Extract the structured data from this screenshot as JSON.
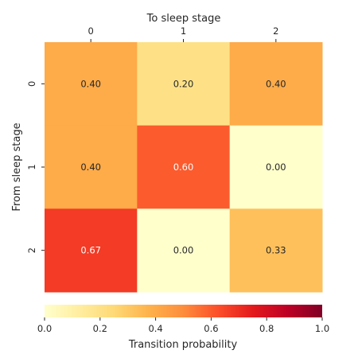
{
  "chart_data": {
    "type": "heatmap",
    "x_title": "To sleep stage",
    "y_title": "From sleep stage",
    "x_ticks": [
      "0",
      "1",
      "2"
    ],
    "y_ticks": [
      "0",
      "1",
      "2"
    ],
    "values": [
      [
        0.4,
        0.2,
        0.4
      ],
      [
        0.4,
        0.6,
        0.0
      ],
      [
        0.67,
        0.0,
        0.33
      ]
    ],
    "labels": [
      [
        "0.40",
        "0.20",
        "0.40"
      ],
      [
        "0.40",
        "0.60",
        "0.00"
      ],
      [
        "0.67",
        "0.00",
        "0.33"
      ]
    ],
    "colorbar": {
      "label": "Transition probability",
      "range": [
        0.0,
        1.0
      ],
      "ticks": [
        "0.0",
        "0.2",
        "0.4",
        "0.6",
        "0.8",
        "1.0"
      ],
      "colormap": "YlOrRd",
      "stops": [
        "#ffffcc",
        "#ffeda0",
        "#fed976",
        "#feb24c",
        "#fd8d3c",
        "#fc4e2a",
        "#e31a1c",
        "#bd0026",
        "#800026"
      ]
    }
  }
}
